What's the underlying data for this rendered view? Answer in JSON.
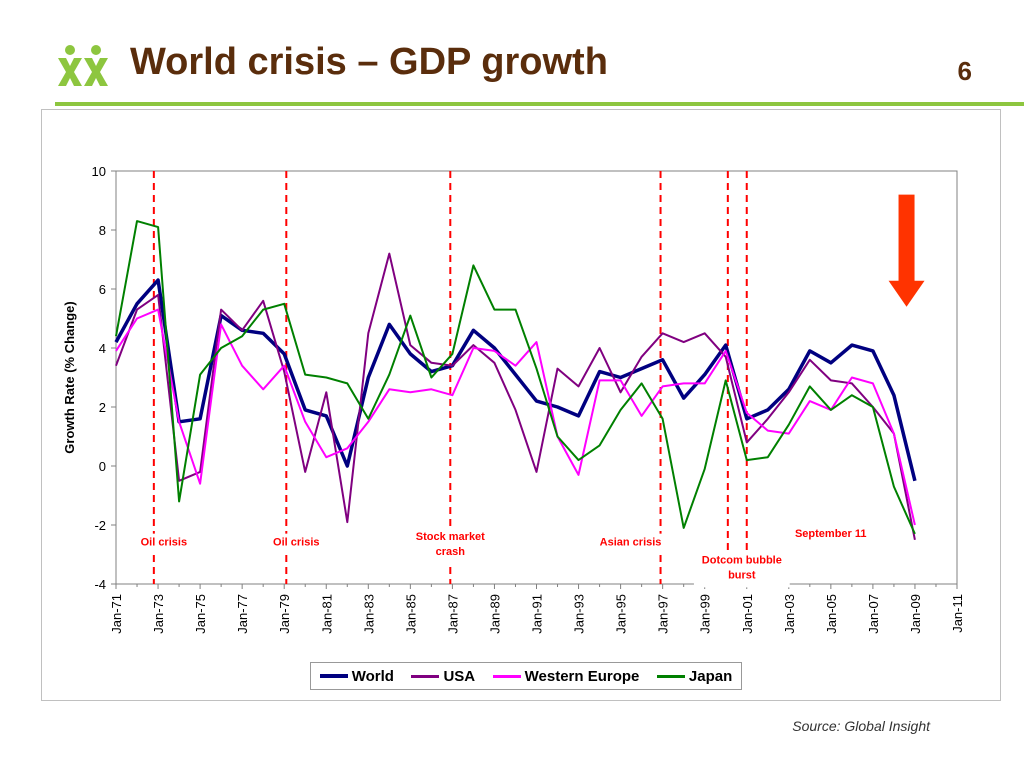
{
  "slide": {
    "title": "World crisis – GDP growth",
    "page_number": "6",
    "source": "Source: Global Insight",
    "accent_color": "#8dc63f",
    "title_color": "#5a2d0c",
    "logo_icon": "two-person-logo-icon"
  },
  "chart_data": {
    "type": "line",
    "title": "",
    "xlabel": "",
    "ylabel": "Growth Rate (% Change)",
    "ylim": [
      -4,
      10
    ],
    "yticks": [
      -4,
      -2,
      0,
      2,
      4,
      6,
      8,
      10
    ],
    "xlim": [
      1971,
      2011
    ],
    "xtick_labels": [
      "Jan-71",
      "Jan-73",
      "Jan-75",
      "Jan-77",
      "Jan-79",
      "Jan-81",
      "Jan-83",
      "Jan-85",
      "Jan-87",
      "Jan-89",
      "Jan-91",
      "Jan-93",
      "Jan-95",
      "Jan-97",
      "Jan-99",
      "Jan-01",
      "Jan-03",
      "Jan-05",
      "Jan-07",
      "Jan-09",
      "Jan-11"
    ],
    "x": [
      1971,
      1972,
      1973,
      1974,
      1975,
      1976,
      1977,
      1978,
      1979,
      1980,
      1981,
      1982,
      1983,
      1984,
      1985,
      1986,
      1987,
      1988,
      1989,
      1990,
      1991,
      1992,
      1993,
      1994,
      1995,
      1996,
      1997,
      1998,
      1999,
      2000,
      2001,
      2002,
      2003,
      2004,
      2005,
      2006,
      2007,
      2008,
      2009
    ],
    "series": [
      {
        "name": "World",
        "color": "#000080",
        "width": 3.5,
        "values": [
          4.2,
          5.5,
          6.3,
          1.5,
          1.6,
          5.1,
          4.6,
          4.5,
          3.8,
          1.9,
          1.7,
          0.0,
          3.0,
          4.8,
          3.8,
          3.2,
          3.4,
          4.6,
          4.0,
          3.1,
          2.2,
          2.0,
          1.7,
          3.2,
          3.0,
          3.3,
          3.6,
          2.3,
          3.1,
          4.1,
          1.6,
          1.9,
          2.6,
          3.9,
          3.5,
          4.1,
          3.9,
          2.4,
          -0.5
        ]
      },
      {
        "name": "USA",
        "color": "#800080",
        "width": 2,
        "values": [
          3.4,
          5.3,
          5.8,
          -0.5,
          -0.2,
          5.3,
          4.6,
          5.6,
          3.2,
          -0.2,
          2.5,
          -1.9,
          4.5,
          7.2,
          4.1,
          3.5,
          3.4,
          4.1,
          3.5,
          1.9,
          -0.2,
          3.3,
          2.7,
          4.0,
          2.5,
          3.7,
          4.5,
          4.2,
          4.5,
          3.7,
          0.8,
          1.6,
          2.5,
          3.6,
          2.9,
          2.8,
          2.0,
          1.1,
          -2.5
        ]
      },
      {
        "name": "Western Europe",
        "color": "#ff00ff",
        "width": 2,
        "values": [
          3.9,
          5.0,
          5.3,
          1.5,
          -0.6,
          4.8,
          3.4,
          2.6,
          3.4,
          1.5,
          0.3,
          0.6,
          1.5,
          2.6,
          2.5,
          2.6,
          2.4,
          4.0,
          3.9,
          3.4,
          4.2,
          1.0,
          -0.3,
          2.9,
          2.9,
          1.7,
          2.7,
          2.8,
          2.8,
          3.9,
          1.8,
          1.2,
          1.1,
          2.2,
          1.9,
          3.0,
          2.8,
          1.1,
          -2.0
        ]
      },
      {
        "name": "Japan",
        "color": "#008000",
        "width": 2,
        "values": [
          4.4,
          8.3,
          8.1,
          -1.2,
          3.1,
          4.0,
          4.4,
          5.3,
          5.5,
          3.1,
          3.0,
          2.8,
          1.6,
          3.1,
          5.1,
          3.0,
          3.8,
          6.8,
          5.3,
          5.3,
          3.3,
          1.0,
          0.2,
          0.7,
          1.9,
          2.8,
          1.6,
          -2.1,
          -0.1,
          2.9,
          0.2,
          0.3,
          1.4,
          2.7,
          1.9,
          2.4,
          2.0,
          -0.7,
          -2.3
        ]
      }
    ],
    "events": [
      {
        "x": 1972.8,
        "labels": [
          "Oil crisis"
        ],
        "label_pos": "low"
      },
      {
        "x": 1979.1,
        "labels": [
          "Oil crisis"
        ],
        "label_pos": "low"
      },
      {
        "x": 1986.9,
        "labels": [
          "Stock market",
          "crash"
        ],
        "label_pos": "mid"
      },
      {
        "x": 1996.9,
        "labels": [
          "Asian crisis"
        ],
        "label_pos": "low"
      },
      {
        "x": 2000.1,
        "labels": [
          "Dotcom bubble",
          "burst"
        ],
        "label_pos": "bottom"
      },
      {
        "x": 2001.0,
        "labels": [
          "September 11"
        ],
        "label_pos": "right"
      }
    ],
    "event_line_color": "#ff0000",
    "annotation_arrow": {
      "direction": "down",
      "color": "#ff3300"
    },
    "grid": false,
    "legend_position": "bottom"
  }
}
